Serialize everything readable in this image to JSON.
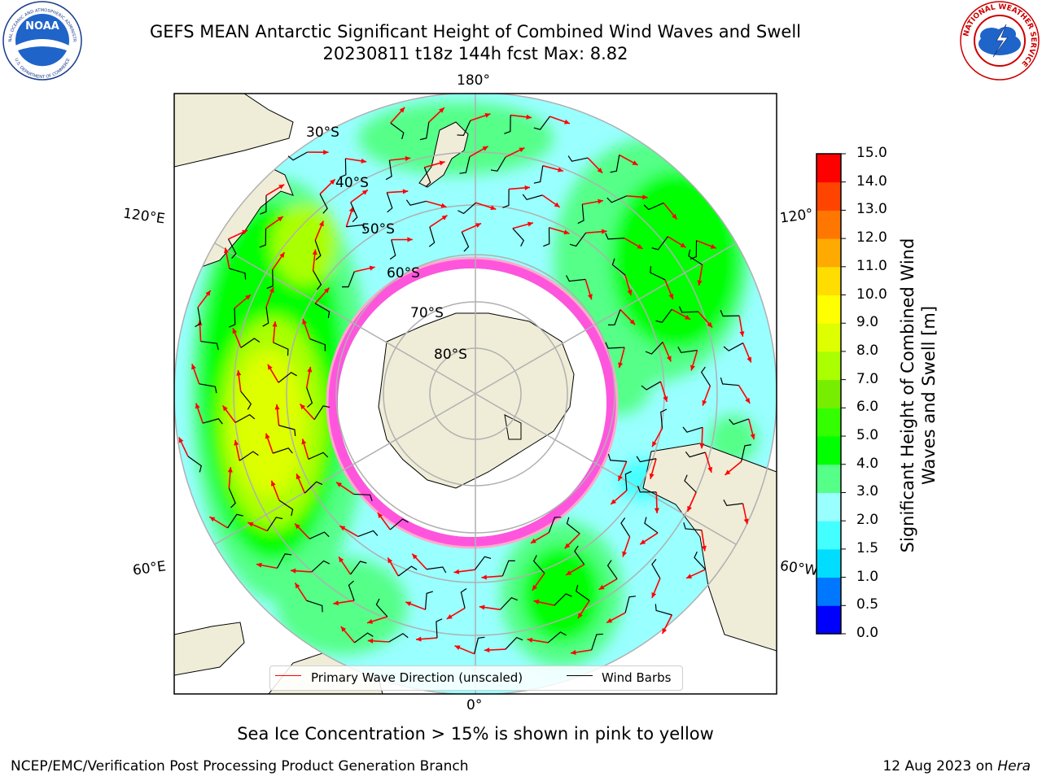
{
  "header": {
    "title_line1": "GEFS MEAN Antarctic Significant Height of Combined Wind Waves and Swell",
    "title_line2": "20230811 t18z 144h fcst   Max: 8.82"
  },
  "logos": {
    "noaa_text": "NOAA",
    "noaa_ring_top": "NATIONAL OCEANIC AND ATMOSPHERIC ADMINISTRATION",
    "noaa_ring_bottom": "U.S. DEPARTMENT OF COMMERCE",
    "nws_ring": "NATIONAL WEATHER SERVICE"
  },
  "map": {
    "longitude_labels": {
      "top": "180°",
      "bottom": "0°",
      "left_upper": "120°E",
      "left_lower": "60°E",
      "right_upper": "120°",
      "right_lower": "60°W"
    },
    "latitude_labels": [
      "30°S",
      "40°S",
      "50°S",
      "60°S",
      "70°S",
      "80°S"
    ]
  },
  "legend": {
    "primary_wave": "Primary Wave Direction (unscaled)",
    "wind_barbs": "Wind Barbs",
    "colors": {
      "wave": "#ff0000",
      "barb": "#000000"
    }
  },
  "colorbar": {
    "title": "Significant Height of Combined Wind Waves and Swell [m]",
    "tick_labels": [
      "0.0",
      "0.5",
      "1.0",
      "1.5",
      "2.0",
      "3.0",
      "4.0",
      "5.0",
      "6.0",
      "7.0",
      "8.0",
      "9.0",
      "10.0",
      "11.0",
      "12.0",
      "13.0",
      "14.0",
      "15.0"
    ],
    "colors": [
      "#0000ff",
      "#0077ff",
      "#00ddff",
      "#44ffff",
      "#99ffff",
      "#55ff88",
      "#00ff00",
      "#33ff00",
      "#77ee00",
      "#aaff00",
      "#ddff00",
      "#ffff00",
      "#ffdd00",
      "#ffaa00",
      "#ff7700",
      "#ff4400",
      "#ff0000"
    ]
  },
  "footer": {
    "subtitle": "Sea Ice Concentration > 15% is shown in pink to yellow",
    "left": "NCEP/EMC/Verification Post Processing Product Generation Branch",
    "right_prefix": "12 Aug 2023 on ",
    "right_host": "Hera"
  }
}
